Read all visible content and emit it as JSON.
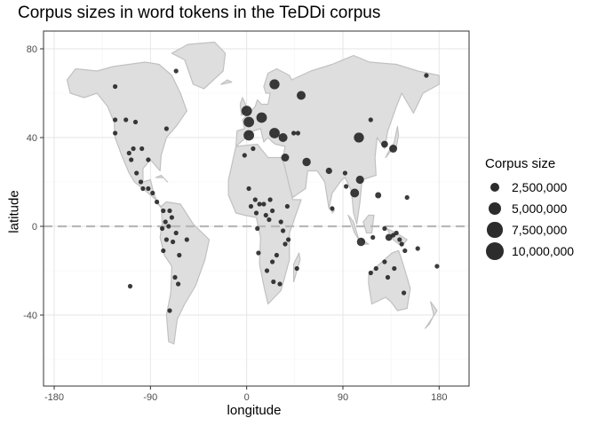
{
  "chart_data": {
    "type": "scatter",
    "title": "Corpus sizes in word tokens in the TeDDi corpus",
    "xlabel": "longitude",
    "ylabel": "latitude",
    "xlim": [
      -190,
      208
    ],
    "ylim": [
      -72,
      88
    ],
    "x_ticks": [
      -180,
      -90,
      0,
      90,
      180
    ],
    "x_tick_labels": [
      "-180",
      "-90",
      "0",
      "90",
      "180"
    ],
    "y_ticks": [
      -40,
      0,
      40,
      80
    ],
    "y_tick_labels": [
      "-40",
      "0",
      "40",
      "80"
    ],
    "grid": true,
    "equator_line": 0,
    "legend": {
      "title": "Corpus size",
      "position": "right",
      "entries": [
        {
          "label": "2,500,000",
          "value": 2500000
        },
        {
          "label": "5,000,000",
          "value": 5000000
        },
        {
          "label": "7,500,000",
          "value": 7500000
        },
        {
          "label": "10,000,000",
          "value": 10000000
        }
      ]
    },
    "points": [
      {
        "lon": -123,
        "lat": 63,
        "size": 400000
      },
      {
        "lon": -66,
        "lat": 70,
        "size": 400000
      },
      {
        "lon": -123,
        "lat": 48,
        "size": 300000
      },
      {
        "lon": -113,
        "lat": 48,
        "size": 300000
      },
      {
        "lon": -104,
        "lat": 47,
        "size": 400000
      },
      {
        "lon": -123,
        "lat": 42,
        "size": 400000
      },
      {
        "lon": -75,
        "lat": 44,
        "size": 300000
      },
      {
        "lon": -106,
        "lat": 35,
        "size": 400000
      },
      {
        "lon": -98,
        "lat": 35,
        "size": 300000
      },
      {
        "lon": -110,
        "lat": 33,
        "size": 400000
      },
      {
        "lon": -108,
        "lat": 30,
        "size": 300000
      },
      {
        "lon": -92,
        "lat": 30,
        "size": 300000
      },
      {
        "lon": -103,
        "lat": 24,
        "size": 300000
      },
      {
        "lon": -99,
        "lat": 20,
        "size": 300000
      },
      {
        "lon": -97,
        "lat": 17,
        "size": 400000
      },
      {
        "lon": -92,
        "lat": 17,
        "size": 400000
      },
      {
        "lon": -88,
        "lat": 15,
        "size": 300000
      },
      {
        "lon": -84,
        "lat": 11,
        "size": 300000
      },
      {
        "lon": -78,
        "lat": 7,
        "size": 300000
      },
      {
        "lon": -72,
        "lat": 7,
        "size": 300000
      },
      {
        "lon": -76,
        "lat": 2,
        "size": 300000
      },
      {
        "lon": -70,
        "lat": 4,
        "size": 300000
      },
      {
        "lon": -79,
        "lat": -1,
        "size": 500000
      },
      {
        "lon": -73,
        "lat": 0,
        "size": 400000
      },
      {
        "lon": -66,
        "lat": -3,
        "size": 300000
      },
      {
        "lon": -75,
        "lat": -6,
        "size": 300000
      },
      {
        "lon": -56,
        "lat": -6,
        "size": 400000
      },
      {
        "lon": -69,
        "lat": -7,
        "size": 400000
      },
      {
        "lon": -78,
        "lat": -11,
        "size": 300000
      },
      {
        "lon": -63,
        "lat": -13,
        "size": 300000
      },
      {
        "lon": -67,
        "lat": -23,
        "size": 600000
      },
      {
        "lon": -64,
        "lat": -26,
        "size": 300000
      },
      {
        "lon": -109,
        "lat": -27,
        "size": 300000
      },
      {
        "lon": -72,
        "lat": -38,
        "size": 400000
      },
      {
        "lon": 0,
        "lat": 52,
        "size": 3500000
      },
      {
        "lon": 14,
        "lat": 49,
        "size": 3500000
      },
      {
        "lon": 2,
        "lat": 47,
        "size": 3500000
      },
      {
        "lon": 2,
        "lat": 41,
        "size": 3500000
      },
      {
        "lon": 26,
        "lat": 64,
        "size": 3200000
      },
      {
        "lon": 51,
        "lat": 59,
        "size": 2500000
      },
      {
        "lon": 26,
        "lat": 42,
        "size": 3500000
      },
      {
        "lon": 34,
        "lat": 40,
        "size": 2500000
      },
      {
        "lon": 44,
        "lat": 42,
        "size": 400000
      },
      {
        "lon": 48,
        "lat": 42,
        "size": 400000
      },
      {
        "lon": 36,
        "lat": 31,
        "size": 2000000
      },
      {
        "lon": 56,
        "lat": 29,
        "size": 2200000
      },
      {
        "lon": 77,
        "lat": 25,
        "size": 1300000
      },
      {
        "lon": 105,
        "lat": 40,
        "size": 3200000
      },
      {
        "lon": 129,
        "lat": 37,
        "size": 1500000
      },
      {
        "lon": 137,
        "lat": 35,
        "size": 2000000
      },
      {
        "lon": 106,
        "lat": 21,
        "size": 2100000
      },
      {
        "lon": 101,
        "lat": 15,
        "size": 2500000
      },
      {
        "lon": 123,
        "lat": 14,
        "size": 1200000
      },
      {
        "lon": 93,
        "lat": 18,
        "size": 300000
      },
      {
        "lon": 92,
        "lat": 24,
        "size": 400000
      },
      {
        "lon": 80,
        "lat": 8,
        "size": 300000
      },
      {
        "lon": 107,
        "lat": -7,
        "size": 2200000
      },
      {
        "lon": 133,
        "lat": -5,
        "size": 1500000
      },
      {
        "lon": 137,
        "lat": -4,
        "size": 400000
      },
      {
        "lon": 140,
        "lat": -3,
        "size": 400000
      },
      {
        "lon": 143,
        "lat": -6,
        "size": 300000
      },
      {
        "lon": 145,
        "lat": -8,
        "size": 300000
      },
      {
        "lon": 118,
        "lat": -5,
        "size": 300000
      },
      {
        "lon": 129,
        "lat": -1,
        "size": 300000
      },
      {
        "lon": 148,
        "lat": -11,
        "size": 300000
      },
      {
        "lon": 160,
        "lat": -10,
        "size": 300000
      },
      {
        "lon": 178,
        "lat": -18,
        "size": 400000
      },
      {
        "lon": 116,
        "lat": -21,
        "size": 300000
      },
      {
        "lon": 121,
        "lat": -19,
        "size": 300000
      },
      {
        "lon": 129,
        "lat": -16,
        "size": 300000
      },
      {
        "lon": 132,
        "lat": -23,
        "size": 300000
      },
      {
        "lon": 138,
        "lat": -19,
        "size": 300000
      },
      {
        "lon": 147,
        "lat": -30,
        "size": 300000
      },
      {
        "lon": 116,
        "lat": 48,
        "size": 300000
      },
      {
        "lon": 168,
        "lat": 68,
        "size": 300000
      },
      {
        "lon": 150,
        "lat": 13,
        "size": 300000
      },
      {
        "lon": 6,
        "lat": 35,
        "size": 400000
      },
      {
        "lon": -2,
        "lat": 32,
        "size": 300000
      },
      {
        "lon": 2,
        "lat": 17,
        "size": 400000
      },
      {
        "lon": 8,
        "lat": 12,
        "size": 300000
      },
      {
        "lon": 12,
        "lat": 10,
        "size": 400000
      },
      {
        "lon": 16,
        "lat": 10,
        "size": 300000
      },
      {
        "lon": 22,
        "lat": 12,
        "size": 300000
      },
      {
        "lon": 4,
        "lat": 9,
        "size": 600000
      },
      {
        "lon": 9,
        "lat": 6,
        "size": 400000
      },
      {
        "lon": 18,
        "lat": 5,
        "size": 300000
      },
      {
        "lon": 21,
        "lat": 3,
        "size": 400000
      },
      {
        "lon": 24,
        "lat": 7,
        "size": 300000
      },
      {
        "lon": 32,
        "lat": 2,
        "size": 300000
      },
      {
        "lon": 38,
        "lat": 9,
        "size": 300000
      },
      {
        "lon": 34,
        "lat": -2,
        "size": 400000
      },
      {
        "lon": 39,
        "lat": -6,
        "size": 300000
      },
      {
        "lon": 36,
        "lat": -8,
        "size": 300000
      },
      {
        "lon": 28,
        "lat": -13,
        "size": 300000
      },
      {
        "lon": 24,
        "lat": -16,
        "size": 300000
      },
      {
        "lon": 19,
        "lat": -20,
        "size": 300000
      },
      {
        "lon": 25,
        "lat": -25,
        "size": 300000
      },
      {
        "lon": 31,
        "lat": -26,
        "size": 300000
      },
      {
        "lon": 47,
        "lat": -19,
        "size": 400000
      },
      {
        "lon": 10,
        "lat": -1,
        "size": 300000
      },
      {
        "lon": 11,
        "lat": -12,
        "size": 300000
      }
    ]
  }
}
